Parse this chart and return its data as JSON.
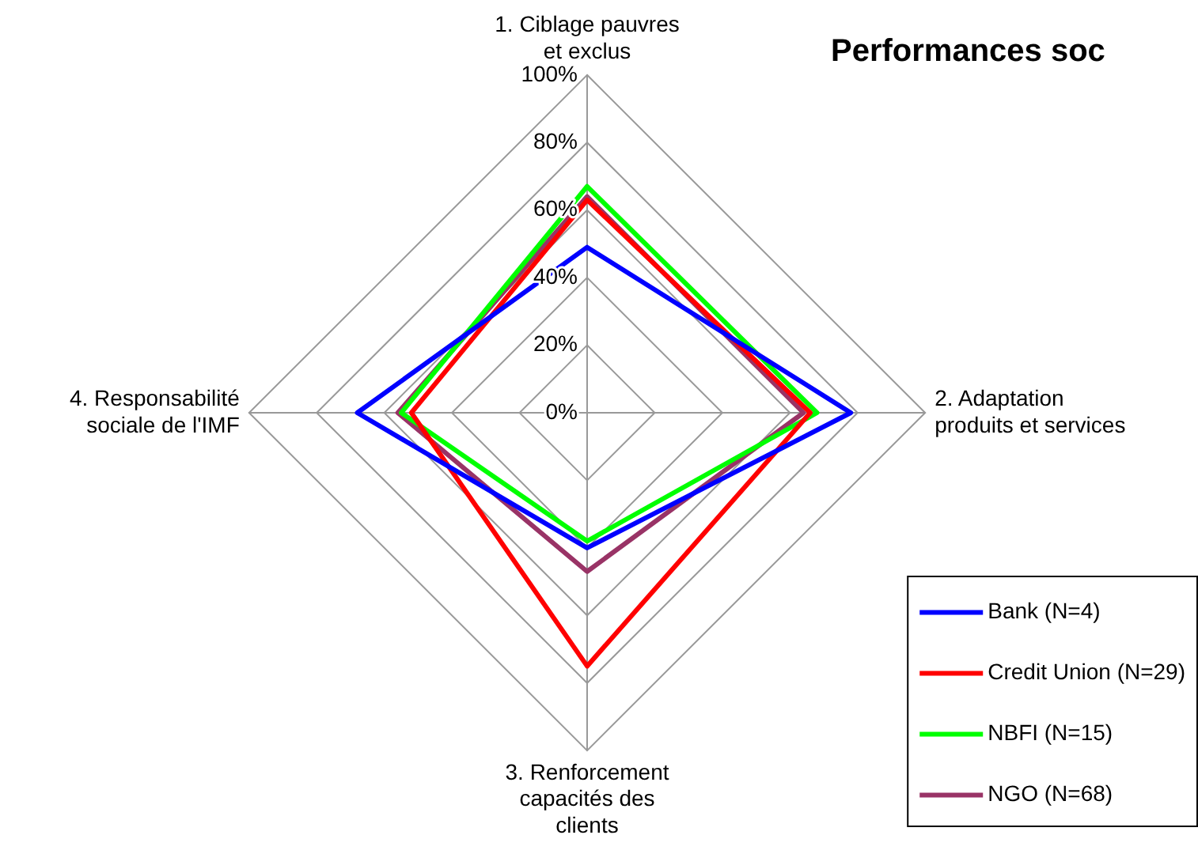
{
  "chart_data": {
    "type": "radar",
    "title": "Performances soc",
    "categories": [
      "1. Ciblage pauvres et exclus",
      "2. Adaptation produits et services",
      "3. Renforcement capacités des clients",
      "4. Responsabilité sociale de l'IMF"
    ],
    "series": [
      {
        "name": "Bank (N=4)",
        "color": "#0000ff",
        "values": [
          49,
          78,
          40,
          68
        ]
      },
      {
        "name": "Credit Union (N=29)",
        "color": "#ff0000",
        "values": [
          63,
          66,
          75,
          52
        ]
      },
      {
        "name": "NBFI (N=15)",
        "color": "#00ff00",
        "values": [
          67,
          68,
          38,
          55
        ]
      },
      {
        "name": "NGO (N=68)",
        "color": "#993366",
        "values": [
          64,
          64,
          47,
          56
        ]
      }
    ],
    "ylim": [
      0,
      100
    ],
    "yticks": [
      {
        "value": 0,
        "label": "0%"
      },
      {
        "value": 20,
        "label": "20%"
      },
      {
        "value": 40,
        "label": "40%"
      },
      {
        "value": 60,
        "label": "60%"
      },
      {
        "value": 80,
        "label": "80%"
      },
      {
        "value": 100,
        "label": "100%"
      }
    ],
    "grid": true,
    "legend": "bottom right",
    "marker": "none",
    "line_style": "solid"
  }
}
